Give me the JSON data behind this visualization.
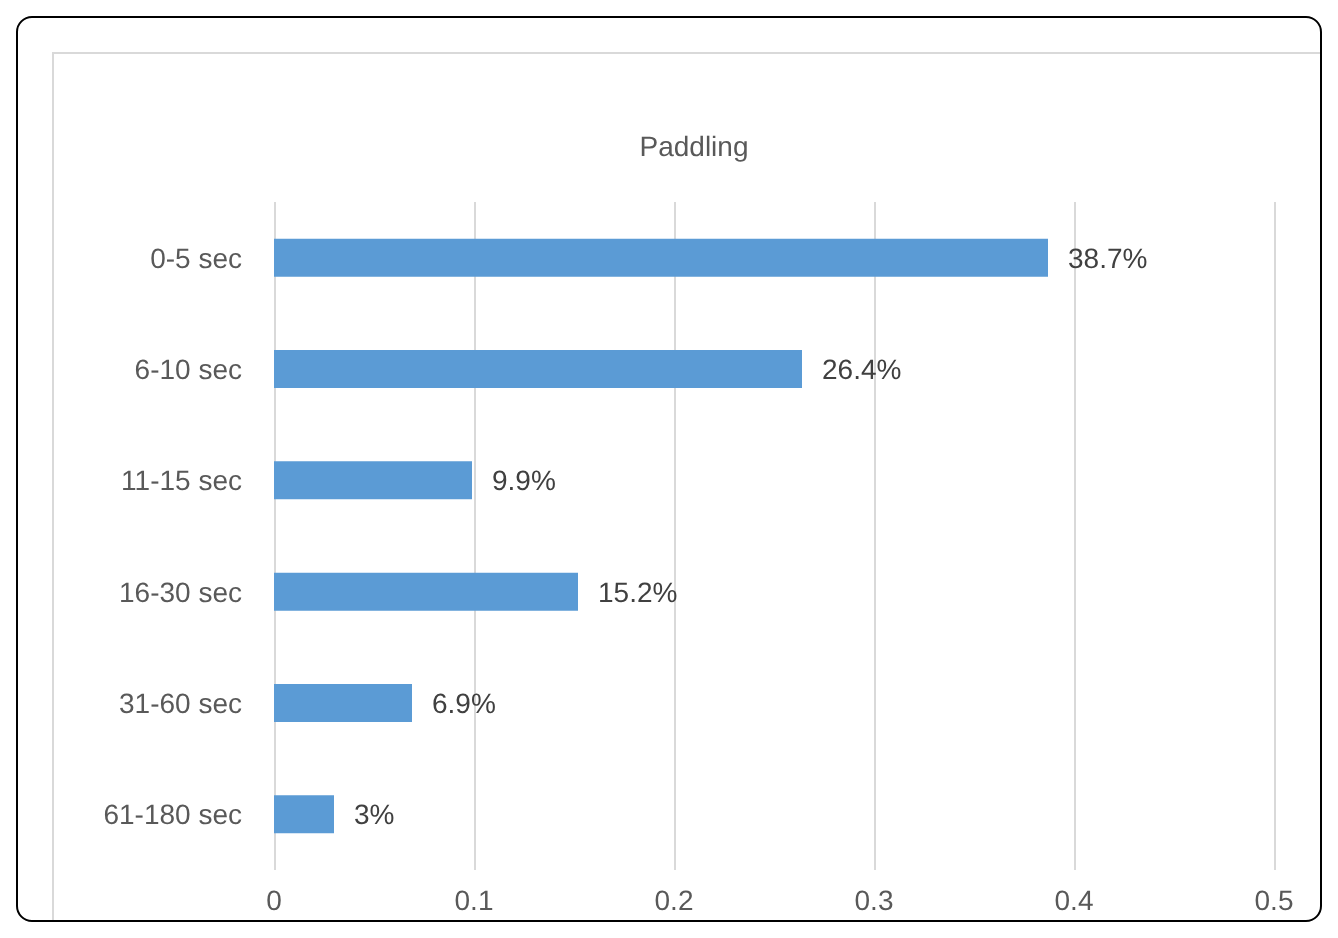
{
  "chart_data": {
    "type": "bar",
    "orientation": "horizontal",
    "title": "Paddling",
    "categories": [
      "0-5 sec",
      "6-10 sec",
      "11-15 sec",
      "16-30 sec",
      "31-60 sec",
      "61-180 sec"
    ],
    "values": [
      0.387,
      0.264,
      0.099,
      0.152,
      0.069,
      0.03
    ],
    "value_labels": [
      "38.7%",
      "26.4%",
      "9.9%",
      "15.2%",
      "6.9%",
      "3%"
    ],
    "color": "#5b9bd5",
    "xlim": [
      0,
      0.5
    ],
    "xticks": [
      0,
      0.1,
      0.2,
      0.3,
      0.4,
      0.5
    ],
    "grid": "x"
  }
}
